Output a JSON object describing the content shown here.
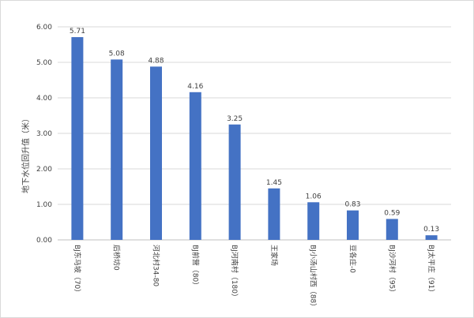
{
  "chart_data": {
    "type": "bar",
    "ylabel": "地下水位回升值（米）",
    "ylim": [
      0,
      6
    ],
    "yticks": [
      "0.00",
      "1.00",
      "2.00",
      "3.00",
      "4.00",
      "5.00",
      "6.00"
    ],
    "grid": true,
    "categories": [
      "BJ东马坡（70）",
      "后桥坊0",
      "河北村34-80",
      "BJ前营（80）",
      "BJ河南村（180）",
      "王家场",
      "BJ小汤山村西（88）",
      "豆各庄-0",
      "BJ沙河村（95）",
      "BJ太平庄（91）"
    ],
    "values": [
      5.71,
      5.08,
      4.88,
      4.16,
      3.25,
      1.45,
      1.06,
      0.83,
      0.59,
      0.13
    ],
    "data_labels": [
      "5.71",
      "5.08",
      "4.88",
      "4.16",
      "3.25",
      "1.45",
      "1.06",
      "0.83",
      "0.59",
      "0.13"
    ],
    "colors": {
      "bar": "#4472c4",
      "grid": "#d9d9d9",
      "text": "#404040"
    }
  }
}
